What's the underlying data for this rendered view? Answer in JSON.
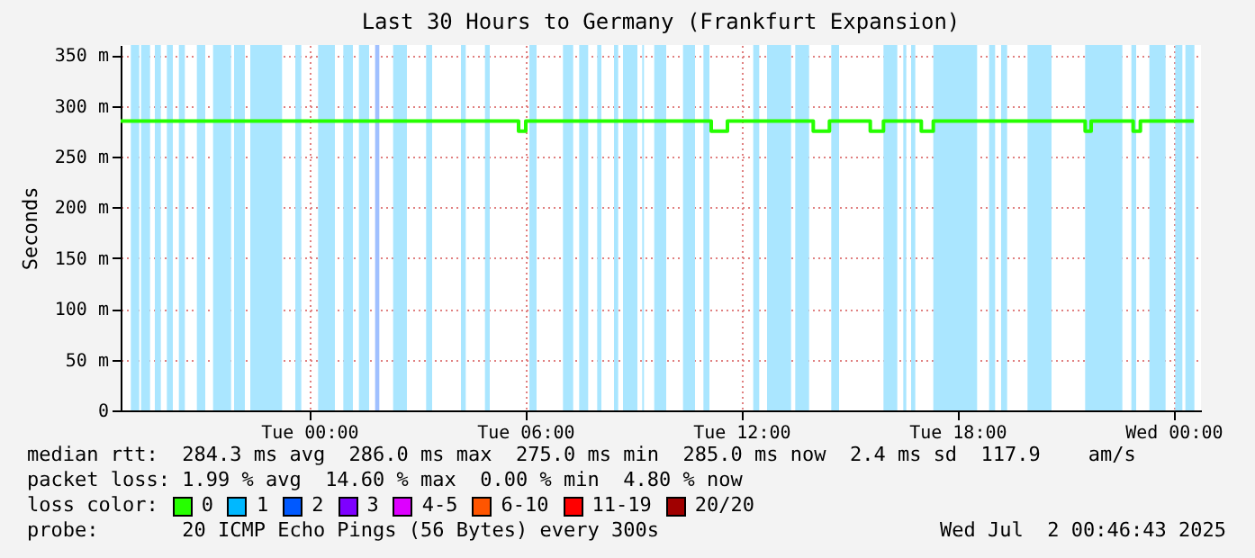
{
  "chart_data": {
    "type": "step",
    "title": "Last 30 Hours to Germany (Frankfurt Expansion)",
    "ylabel": "Seconds",
    "xlim": [
      "2025-06-30T18:46",
      "2025-07-02T00:46"
    ],
    "xticks": [
      {
        "value": "2025-07-01T00:00",
        "label": "Tue 00:00"
      },
      {
        "value": "2025-07-01T06:00",
        "label": "Tue 06:00"
      },
      {
        "value": "2025-07-01T12:00",
        "label": "Tue 12:00"
      },
      {
        "value": "2025-07-01T18:00",
        "label": "Tue 18:00"
      },
      {
        "value": "2025-07-02T00:00",
        "label": "Wed 00:00"
      }
    ],
    "ylim": [
      0,
      360
    ],
    "yticks": [
      0,
      {
        "value": 50,
        "label": "50 m"
      },
      {
        "value": 100,
        "label": "100 m"
      },
      {
        "value": 150,
        "label": "150 m"
      },
      {
        "value": 200,
        "label": "200 m"
      },
      {
        "value": 250,
        "label": "250 m"
      },
      {
        "value": 300,
        "label": "300 m"
      },
      {
        "value": 350,
        "label": "350 m"
      }
    ],
    "grid": true,
    "series": [
      {
        "color": "#26ff00",
        "x": [
          "2025-06-30T18:46",
          "2025-07-01T05:49",
          "2025-07-01T06:01",
          "2025-07-01T11:10",
          "2025-07-01T11:37",
          "2025-07-01T14:00",
          "2025-07-01T14:27",
          "2025-07-01T15:35",
          "2025-07-01T15:57",
          "2025-07-01T17:00",
          "2025-07-01T17:20",
          "2025-07-01T21:33",
          "2025-07-01T21:43",
          "2025-07-01T22:53",
          "2025-07-01T23:05",
          "2025-07-02T00:34"
        ],
        "values": [
          285,
          275,
          285,
          275,
          285,
          275,
          285,
          275,
          285,
          275,
          285,
          275,
          285,
          275,
          285,
          285
        ]
      }
    ],
    "bands": [
      {
        "axis": "x",
        "from": "2025-06-30T19:03",
        "to": "2025-06-30T19:17",
        "color": "#aae6ff"
      },
      {
        "axis": "x",
        "from": "2025-06-30T19:20",
        "to": "2025-06-30T19:35",
        "color": "#aae6ff"
      },
      {
        "axis": "x",
        "from": "2025-06-30T19:43",
        "to": "2025-06-30T19:53",
        "color": "#aae6ff"
      },
      {
        "axis": "x",
        "from": "2025-06-30T20:03",
        "to": "2025-06-30T20:13",
        "color": "#aae6ff"
      },
      {
        "axis": "x",
        "from": "2025-06-30T20:23",
        "to": "2025-06-30T20:33",
        "color": "#aae6ff"
      },
      {
        "axis": "x",
        "from": "2025-06-30T20:53",
        "to": "2025-06-30T21:07",
        "color": "#aae6ff"
      },
      {
        "axis": "x",
        "from": "2025-06-30T21:20",
        "to": "2025-06-30T21:50",
        "color": "#aae6ff"
      },
      {
        "axis": "x",
        "from": "2025-06-30T21:55",
        "to": "2025-06-30T22:13",
        "color": "#aae6ff"
      },
      {
        "axis": "x",
        "from": "2025-06-30T22:22",
        "to": "2025-06-30T23:15",
        "color": "#aae6ff"
      },
      {
        "axis": "x",
        "from": "2025-06-30T23:37",
        "to": "2025-06-30T23:47",
        "color": "#aae6ff"
      },
      {
        "axis": "x",
        "from": "2025-07-01T00:15",
        "to": "2025-07-01T00:43",
        "color": "#aae6ff"
      },
      {
        "axis": "x",
        "from": "2025-07-01T00:57",
        "to": "2025-07-01T01:13",
        "color": "#aae6ff"
      },
      {
        "axis": "x",
        "from": "2025-07-01T01:23",
        "to": "2025-07-01T01:40",
        "color": "#aae6ff"
      },
      {
        "axis": "x",
        "from": "2025-07-01T01:50",
        "to": "2025-07-01T01:57",
        "color": "#a0c0ff"
      },
      {
        "axis": "x",
        "from": "2025-07-01T02:20",
        "to": "2025-07-01T02:43",
        "color": "#aae6ff"
      },
      {
        "axis": "x",
        "from": "2025-07-01T03:15",
        "to": "2025-07-01T03:25",
        "color": "#aae6ff"
      },
      {
        "axis": "x",
        "from": "2025-07-01T04:13",
        "to": "2025-07-01T04:21",
        "color": "#aae6ff"
      },
      {
        "axis": "x",
        "from": "2025-07-01T04:53",
        "to": "2025-07-01T05:01",
        "color": "#aae6ff"
      },
      {
        "axis": "x",
        "from": "2025-07-01T06:07",
        "to": "2025-07-01T06:19",
        "color": "#aae6ff"
      },
      {
        "axis": "x",
        "from": "2025-07-01T07:03",
        "to": "2025-07-01T07:20",
        "color": "#aae6ff"
      },
      {
        "axis": "x",
        "from": "2025-07-01T07:30",
        "to": "2025-07-01T07:45",
        "color": "#aae6ff"
      },
      {
        "axis": "x",
        "from": "2025-07-01T08:00",
        "to": "2025-07-01T08:07",
        "color": "#aae6ff"
      },
      {
        "axis": "x",
        "from": "2025-07-01T08:28",
        "to": "2025-07-01T08:35",
        "color": "#aae6ff"
      },
      {
        "axis": "x",
        "from": "2025-07-01T08:43",
        "to": "2025-07-01T09:07",
        "color": "#aae6ff"
      },
      {
        "axis": "x",
        "from": "2025-07-01T09:15",
        "to": "2025-07-01T09:18",
        "color": "#aae6ff"
      },
      {
        "axis": "x",
        "from": "2025-07-01T09:35",
        "to": "2025-07-01T09:55",
        "color": "#aae6ff"
      },
      {
        "axis": "x",
        "from": "2025-07-01T10:23",
        "to": "2025-07-01T10:43",
        "color": "#aae6ff"
      },
      {
        "axis": "x",
        "from": "2025-07-01T10:57",
        "to": "2025-07-01T11:07",
        "color": "#aae6ff"
      },
      {
        "axis": "x",
        "from": "2025-07-01T12:20",
        "to": "2025-07-01T12:30",
        "color": "#aae6ff"
      },
      {
        "axis": "x",
        "from": "2025-07-01T12:43",
        "to": "2025-07-01T13:23",
        "color": "#aae6ff"
      },
      {
        "axis": "x",
        "from": "2025-07-01T13:30",
        "to": "2025-07-01T13:53",
        "color": "#aae6ff"
      },
      {
        "axis": "x",
        "from": "2025-07-01T14:30",
        "to": "2025-07-01T14:43",
        "color": "#aae6ff"
      },
      {
        "axis": "x",
        "from": "2025-07-01T15:57",
        "to": "2025-07-01T16:20",
        "color": "#aae6ff"
      },
      {
        "axis": "x",
        "from": "2025-07-01T16:30",
        "to": "2025-07-01T16:35",
        "color": "#aae6ff"
      },
      {
        "axis": "x",
        "from": "2025-07-01T16:43",
        "to": "2025-07-01T16:50",
        "color": "#aae6ff"
      },
      {
        "axis": "x",
        "from": "2025-07-01T17:20",
        "to": "2025-07-01T18:33",
        "color": "#aae6ff"
      },
      {
        "axis": "x",
        "from": "2025-07-01T18:53",
        "to": "2025-07-01T19:03",
        "color": "#aae6ff"
      },
      {
        "axis": "x",
        "from": "2025-07-01T19:13",
        "to": "2025-07-01T19:23",
        "color": "#aae6ff"
      },
      {
        "axis": "x",
        "from": "2025-07-01T19:57",
        "to": "2025-07-01T20:37",
        "color": "#aae6ff"
      },
      {
        "axis": "x",
        "from": "2025-07-01T21:33",
        "to": "2025-07-01T22:35",
        "color": "#aae6ff"
      },
      {
        "axis": "x",
        "from": "2025-07-01T22:50",
        "to": "2025-07-01T22:58",
        "color": "#aae6ff"
      },
      {
        "axis": "x",
        "from": "2025-07-01T23:20",
        "to": "2025-07-01T23:47",
        "color": "#aae6ff"
      },
      {
        "axis": "x",
        "from": "2025-07-02T00:03",
        "to": "2025-07-02T00:15",
        "color": "#aae6ff"
      },
      {
        "axis": "x",
        "from": "2025-07-02T00:20",
        "to": "2025-07-02T00:35",
        "color": "#aae6ff"
      }
    ],
    "annotations": [
      "median rtt:  284.3 ms avg  286.0 ms max  275.0 ms min  285.0 ms now  2.4 ms sd  117.9    am/s",
      "packet loss: 1.99 % avg  14.60 % max  0.00 % min  4.80 % now",
      "loss color:",
      "0",
      "1",
      "2",
      "3",
      "4-5",
      "6-10",
      "11-19",
      "20/20",
      "probe:       20 ICMP Echo Pings (56 Bytes) every 300s",
      "Wed Jul  2 00:46:43 2025"
    ]
  }
}
